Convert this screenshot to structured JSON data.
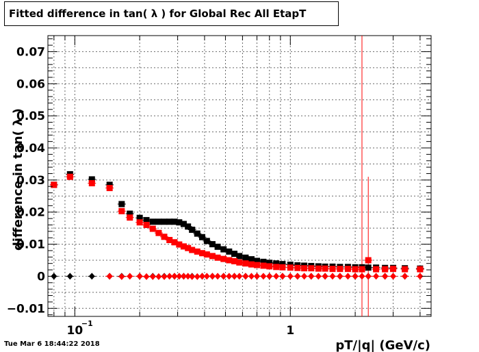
{
  "title": "Fitted difference in tan( λ ) for Global Rec All EtapT",
  "timestamp": "Tue Mar  6 18:44:22 2018",
  "colors": {
    "black_series": "#000000",
    "red_series": "#ff0000",
    "grid": "#000000"
  },
  "chart_data": {
    "type": "scatter",
    "title": "Fitted difference in tan( λ ) for Global Rec All EtapT",
    "xlabel": "pT/|q| (GeV/c)",
    "ylabel": "difference in tan( λ )",
    "xscale": "log",
    "xlim": [
      0.075,
      4.5
    ],
    "ylim": [
      -0.0125,
      0.075
    ],
    "grid": true,
    "x_tick_labels": [
      {
        "value": 0.1,
        "label": "10",
        "exponent": "−1"
      },
      {
        "value": 1,
        "label": "1",
        "exponent": ""
      }
    ],
    "y_tick_labels": [
      {
        "value": -0.01,
        "label": "−0.01"
      },
      {
        "value": 0,
        "label": "0"
      },
      {
        "value": 0.01,
        "label": "0.01"
      },
      {
        "value": 0.02,
        "label": "0.02"
      },
      {
        "value": 0.03,
        "label": "0.03"
      },
      {
        "value": 0.04,
        "label": "0.04"
      },
      {
        "value": 0.05,
        "label": "0.05"
      },
      {
        "value": 0.06,
        "label": "0.06"
      },
      {
        "value": 0.07,
        "label": "0.07"
      }
    ],
    "series": [
      {
        "marker": "square",
        "color": "#000000",
        "points": [
          [
            0.08,
            0.0285
          ],
          [
            0.095,
            0.0318
          ],
          [
            0.12,
            0.0302
          ],
          [
            0.145,
            0.0285
          ],
          [
            0.165,
            0.0225
          ],
          [
            0.18,
            0.0195
          ],
          [
            0.2,
            0.0182
          ],
          [
            0.215,
            0.0175
          ],
          [
            0.23,
            0.017
          ],
          [
            0.245,
            0.017
          ],
          [
            0.26,
            0.017
          ],
          [
            0.275,
            0.017
          ],
          [
            0.29,
            0.017
          ],
          [
            0.305,
            0.0168
          ],
          [
            0.32,
            0.0163
          ],
          [
            0.335,
            0.0155
          ],
          [
            0.35,
            0.0145
          ],
          [
            0.37,
            0.0133
          ],
          [
            0.39,
            0.0122
          ],
          [
            0.41,
            0.011
          ],
          [
            0.435,
            0.01
          ],
          [
            0.46,
            0.0092
          ],
          [
            0.49,
            0.0084
          ],
          [
            0.52,
            0.0077
          ],
          [
            0.55,
            0.007
          ],
          [
            0.58,
            0.0063
          ],
          [
            0.62,
            0.0058
          ],
          [
            0.66,
            0.0053
          ],
          [
            0.7,
            0.0048
          ],
          [
            0.75,
            0.0045
          ],
          [
            0.8,
            0.0042
          ],
          [
            0.86,
            0.004
          ],
          [
            0.92,
            0.0038
          ],
          [
            1.0,
            0.0036
          ],
          [
            1.08,
            0.0034
          ],
          [
            1.16,
            0.0033
          ],
          [
            1.25,
            0.0032
          ],
          [
            1.35,
            0.0031
          ],
          [
            1.45,
            0.003
          ],
          [
            1.57,
            0.003
          ],
          [
            1.7,
            0.0029
          ],
          [
            1.85,
            0.0029
          ],
          [
            2.0,
            0.0028
          ],
          [
            2.15,
            0.0028
          ],
          [
            2.3,
            0.0027
          ],
          [
            2.5,
            0.0027
          ],
          [
            2.75,
            0.0026
          ],
          [
            3.0,
            0.0026
          ],
          [
            3.4,
            0.0025
          ],
          [
            4.0,
            0.0024
          ]
        ]
      },
      {
        "marker": "square",
        "color": "#ff0000",
        "points": [
          [
            0.08,
            0.0285
          ],
          [
            0.095,
            0.031
          ],
          [
            0.12,
            0.029
          ],
          [
            0.145,
            0.0275
          ],
          [
            0.165,
            0.0203
          ],
          [
            0.18,
            0.0183
          ],
          [
            0.2,
            0.0168
          ],
          [
            0.215,
            0.016
          ],
          [
            0.23,
            0.0148
          ],
          [
            0.245,
            0.0135
          ],
          [
            0.26,
            0.0123
          ],
          [
            0.275,
            0.0113
          ],
          [
            0.29,
            0.0106
          ],
          [
            0.305,
            0.0099
          ],
          [
            0.32,
            0.0093
          ],
          [
            0.335,
            0.0088
          ],
          [
            0.35,
            0.0082
          ],
          [
            0.37,
            0.0077
          ],
          [
            0.39,
            0.0072
          ],
          [
            0.41,
            0.0068
          ],
          [
            0.435,
            0.0063
          ],
          [
            0.46,
            0.0058
          ],
          [
            0.49,
            0.0054
          ],
          [
            0.52,
            0.005
          ],
          [
            0.55,
            0.0047
          ],
          [
            0.58,
            0.0043
          ],
          [
            0.62,
            0.004
          ],
          [
            0.66,
            0.0037
          ],
          [
            0.7,
            0.0035
          ],
          [
            0.75,
            0.0033
          ],
          [
            0.8,
            0.0031
          ],
          [
            0.86,
            0.0029
          ],
          [
            0.92,
            0.0028
          ],
          [
            1.0,
            0.0027
          ],
          [
            1.08,
            0.0026
          ],
          [
            1.16,
            0.0025
          ],
          [
            1.25,
            0.0025
          ],
          [
            1.35,
            0.0024
          ],
          [
            1.45,
            0.0024
          ],
          [
            1.57,
            0.0023
          ],
          [
            1.7,
            0.0023
          ],
          [
            1.85,
            0.0023
          ],
          [
            2.0,
            0.0022
          ],
          [
            2.15,
            0.0022
          ],
          [
            2.3,
            0.005
          ],
          [
            2.5,
            0.0022
          ],
          [
            2.75,
            0.0022
          ],
          [
            3.0,
            0.0023
          ],
          [
            3.4,
            0.0022
          ],
          [
            4.0,
            0.0022
          ]
        ]
      },
      {
        "marker": "diamond",
        "color": "#000000",
        "points": [
          [
            0.08,
            0.0
          ],
          [
            0.095,
            0.0
          ],
          [
            0.12,
            0.0
          ],
          [
            0.145,
            0.0
          ],
          [
            0.165,
            0.0
          ],
          [
            0.2,
            0.0
          ],
          [
            0.23,
            0.0
          ],
          [
            0.26,
            0.0
          ],
          [
            0.29,
            0.0
          ],
          [
            0.32,
            0.0
          ],
          [
            0.35,
            0.0
          ],
          [
            0.39,
            0.0
          ],
          [
            0.435,
            0.0
          ],
          [
            0.49,
            0.0
          ],
          [
            0.55,
            0.0
          ],
          [
            0.62,
            0.0
          ],
          [
            0.7,
            0.0
          ],
          [
            0.8,
            0.0
          ],
          [
            0.92,
            0.0
          ],
          [
            1.08,
            0.0
          ],
          [
            1.25,
            0.0
          ],
          [
            1.45,
            0.0
          ],
          [
            1.7,
            0.0
          ],
          [
            2.0,
            0.0
          ],
          [
            2.3,
            0.0
          ],
          [
            2.75,
            0.0
          ],
          [
            3.4,
            0.0
          ]
        ]
      },
      {
        "marker": "diamond",
        "color": "#ff0000",
        "points": [
          [
            0.145,
            0.0
          ],
          [
            0.165,
            -0.0001
          ],
          [
            0.18,
            0.0
          ],
          [
            0.2,
            0.0
          ],
          [
            0.215,
            -0.0001
          ],
          [
            0.23,
            -0.0001
          ],
          [
            0.245,
            -0.0001
          ],
          [
            0.26,
            -0.0001
          ],
          [
            0.275,
            0.0
          ],
          [
            0.29,
            0.0
          ],
          [
            0.305,
            0.0
          ],
          [
            0.32,
            0.0
          ],
          [
            0.335,
            0.0
          ],
          [
            0.35,
            -0.0001
          ],
          [
            0.37,
            -0.0001
          ],
          [
            0.39,
            0.0
          ],
          [
            0.41,
            0.0
          ],
          [
            0.435,
            0.0
          ],
          [
            0.46,
            0.0
          ],
          [
            0.49,
            0.0
          ],
          [
            0.52,
            0.0
          ],
          [
            0.55,
            0.0
          ],
          [
            0.58,
            0.0
          ],
          [
            0.62,
            0.0
          ],
          [
            0.66,
            0.0
          ],
          [
            0.7,
            0.0
          ],
          [
            0.75,
            0.0
          ],
          [
            0.8,
            0.0
          ],
          [
            0.86,
            0.0
          ],
          [
            0.92,
            0.0
          ],
          [
            1.0,
            0.0
          ],
          [
            1.08,
            0.0
          ],
          [
            1.16,
            0.0
          ],
          [
            1.25,
            0.0
          ],
          [
            1.35,
            0.0
          ],
          [
            1.45,
            0.0
          ],
          [
            1.57,
            0.0
          ],
          [
            1.7,
            0.0
          ],
          [
            1.85,
            0.0
          ],
          [
            2.0,
            0.0
          ],
          [
            2.15,
            0.0
          ],
          [
            2.3,
            0.0
          ],
          [
            2.5,
            0.0
          ],
          [
            2.75,
            0.0
          ],
          [
            3.0,
            0.0
          ],
          [
            3.4,
            0.0
          ],
          [
            4.0,
            0.0
          ]
        ]
      }
    ],
    "error_bars": [
      {
        "x": 2.15,
        "ylow": -0.0125,
        "yhigh": 0.075,
        "color": "#ff0000"
      },
      {
        "x": 2.3,
        "ylow": -0.0125,
        "yhigh": 0.031,
        "color": "#ff0000"
      }
    ]
  }
}
